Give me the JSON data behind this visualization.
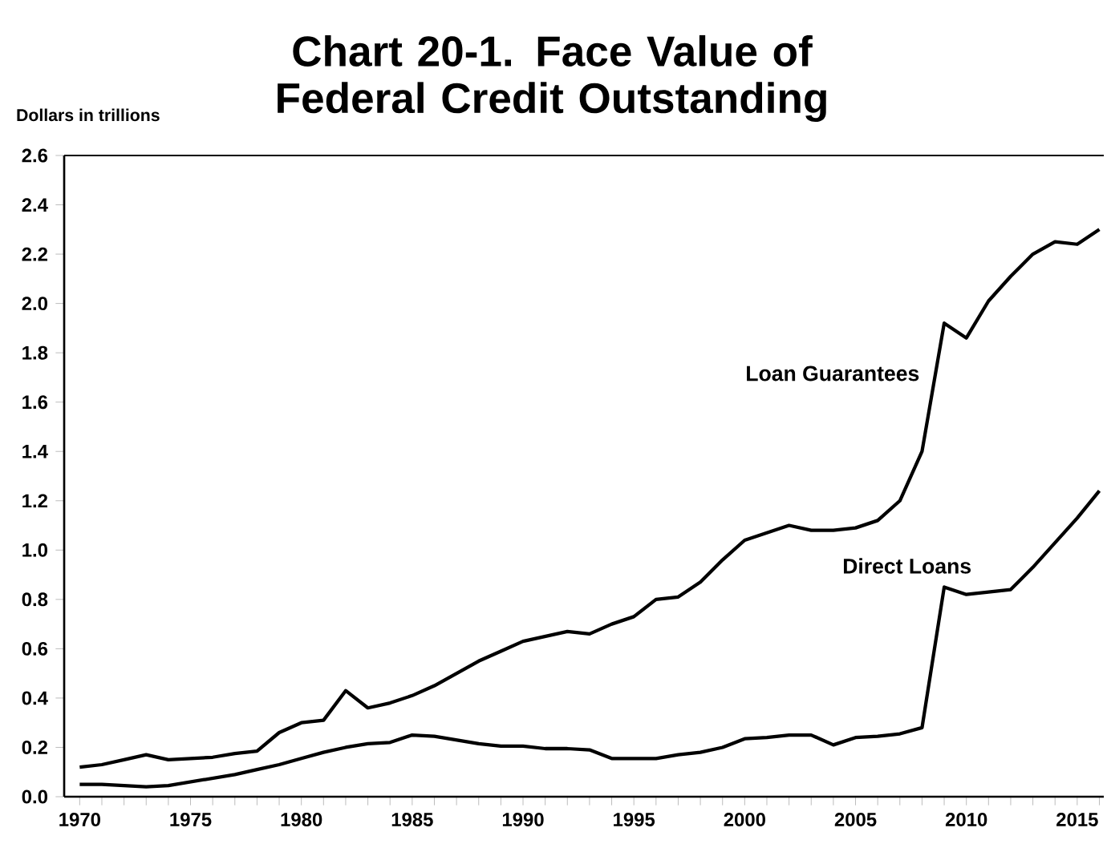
{
  "chart_data": {
    "type": "line",
    "title": "Chart 20-1. Face Value of Federal Credit Outstanding",
    "ylabel": "Dollars in trillions",
    "x": [
      1970,
      1971,
      1972,
      1973,
      1974,
      1975,
      1976,
      1977,
      1978,
      1979,
      1980,
      1981,
      1982,
      1983,
      1984,
      1985,
      1986,
      1987,
      1988,
      1989,
      1990,
      1991,
      1992,
      1993,
      1994,
      1995,
      1996,
      1997,
      1998,
      1999,
      2000,
      2001,
      2002,
      2003,
      2004,
      2005,
      2006,
      2007,
      2008,
      2009,
      2010,
      2011,
      2012,
      2013,
      2014,
      2015,
      2016
    ],
    "series": [
      {
        "name": "Loan Guarantees",
        "color": "#000000",
        "values": [
          0.12,
          0.13,
          0.15,
          0.17,
          0.15,
          0.155,
          0.16,
          0.175,
          0.185,
          0.26,
          0.3,
          0.31,
          0.43,
          0.36,
          0.38,
          0.41,
          0.45,
          0.5,
          0.55,
          0.59,
          0.63,
          0.65,
          0.67,
          0.66,
          0.7,
          0.73,
          0.8,
          0.81,
          0.87,
          0.96,
          1.04,
          1.07,
          1.1,
          1.08,
          1.08,
          1.09,
          1.12,
          1.2,
          1.4,
          1.92,
          1.86,
          2.01,
          2.11,
          2.2,
          2.25,
          2.24,
          2.3
        ]
      },
      {
        "name": "Direct Loans",
        "color": "#000000",
        "values": [
          0.05,
          0.05,
          0.045,
          0.04,
          0.045,
          0.06,
          0.075,
          0.09,
          0.11,
          0.13,
          0.155,
          0.18,
          0.2,
          0.215,
          0.22,
          0.25,
          0.245,
          0.23,
          0.215,
          0.205,
          0.205,
          0.195,
          0.195,
          0.19,
          0.155,
          0.155,
          0.155,
          0.17,
          0.18,
          0.2,
          0.235,
          0.24,
          0.25,
          0.25,
          0.21,
          0.24,
          0.245,
          0.255,
          0.28,
          0.85,
          0.82,
          0.83,
          0.84,
          0.93,
          1.03,
          1.13,
          1.24
        ]
      }
    ],
    "xlim": [
      1969.3,
      2016.2
    ],
    "ylim": [
      0,
      2.6
    ],
    "xticks": [
      1970,
      {
        "value": 1971,
        "label": null
      },
      {
        "value": 1972,
        "label": null
      },
      {
        "value": 1973,
        "label": null
      },
      {
        "value": 1974,
        "label": null
      },
      1975,
      {
        "value": 1976,
        "label": null
      },
      {
        "value": 1977,
        "label": null
      },
      {
        "value": 1978,
        "label": null
      },
      {
        "value": 1979,
        "label": null
      },
      1980,
      {
        "value": 1981,
        "label": null
      },
      {
        "value": 1982,
        "label": null
      },
      {
        "value": 1983,
        "label": null
      },
      {
        "value": 1984,
        "label": null
      },
      1985,
      {
        "value": 1986,
        "label": null
      },
      {
        "value": 1987,
        "label": null
      },
      {
        "value": 1988,
        "label": null
      },
      {
        "value": 1989,
        "label": null
      },
      1990,
      {
        "value": 1991,
        "label": null
      },
      {
        "value": 1992,
        "label": null
      },
      {
        "value": 1993,
        "label": null
      },
      {
        "value": 1994,
        "label": null
      },
      1995,
      {
        "value": 1996,
        "label": null
      },
      {
        "value": 1997,
        "label": null
      },
      {
        "value": 1998,
        "label": null
      },
      {
        "value": 1999,
        "label": null
      },
      2000,
      {
        "value": 2001,
        "label": null
      },
      {
        "value": 2002,
        "label": null
      },
      {
        "value": 2003,
        "label": null
      },
      {
        "value": 2004,
        "label": null
      },
      2005,
      {
        "value": 2006,
        "label": null
      },
      {
        "value": 2007,
        "label": null
      },
      {
        "value": 2008,
        "label": null
      },
      {
        "value": 2009,
        "label": null
      },
      2010,
      {
        "value": 2011,
        "label": null
      },
      {
        "value": 2012,
        "label": null
      },
      {
        "value": 2013,
        "label": null
      },
      {
        "value": 2014,
        "label": null
      },
      2015,
      {
        "value": 2016,
        "label": null
      }
    ],
    "yticks": [
      {
        "value": 0,
        "label": "0.0"
      },
      0.2,
      0.4,
      0.6,
      0.8,
      {
        "value": 1,
        "label": "1.0"
      },
      1.2,
      1.4,
      1.6,
      1.8,
      {
        "value": 2,
        "label": "2.0"
      },
      2.2,
      2.4,
      2.6
    ],
    "grid": false,
    "legend": false,
    "marker": "none",
    "line_style": "solid"
  }
}
